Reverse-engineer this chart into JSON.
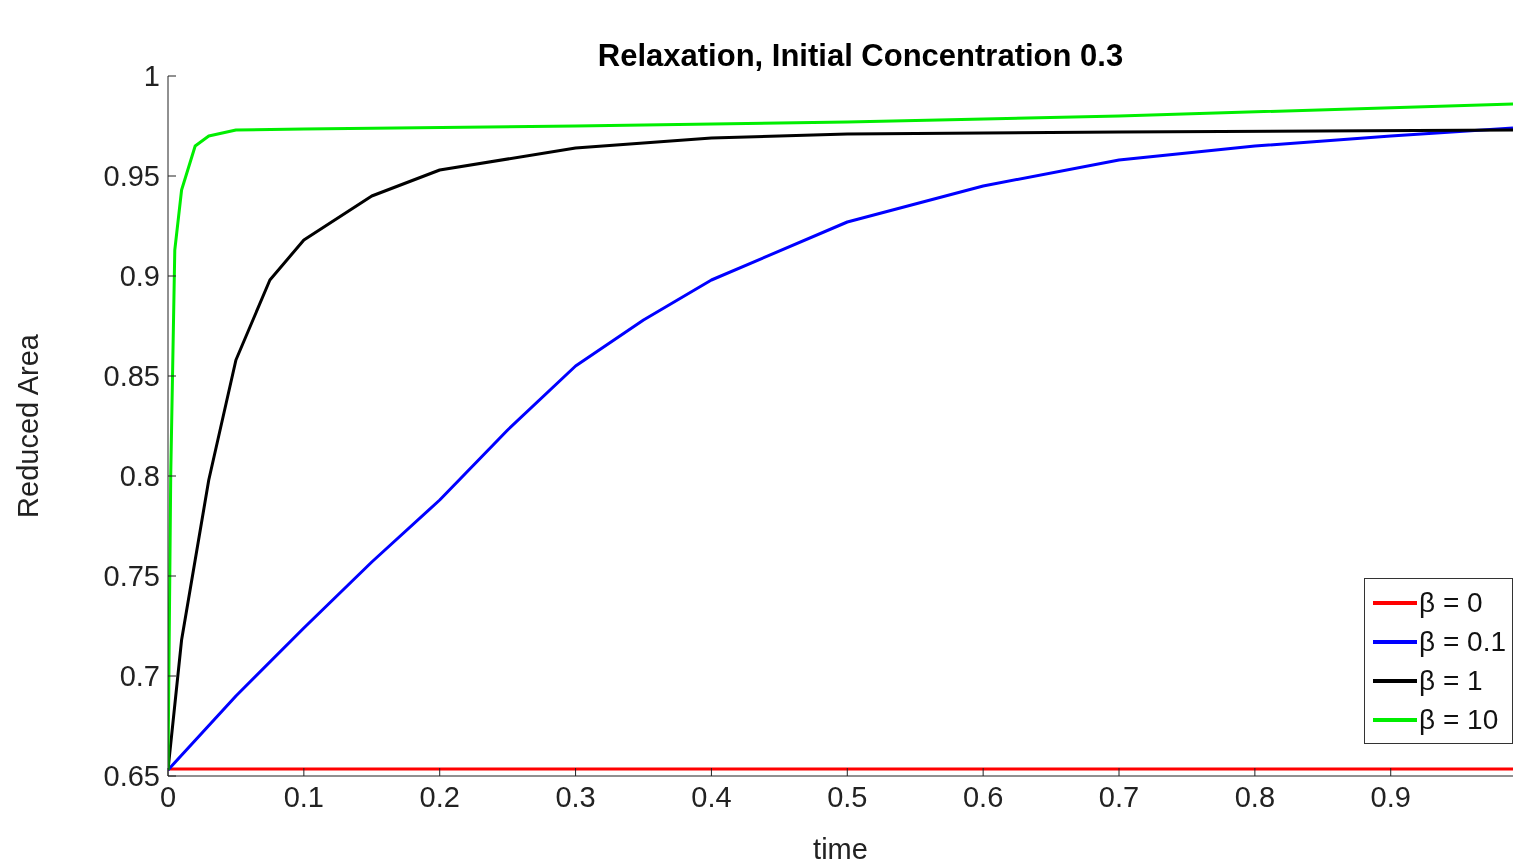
{
  "chart_data": {
    "type": "line",
    "title": "Relaxation, Initial Concentration 0.3",
    "xlabel": "time",
    "ylabel": "Reduced Area",
    "xlim": [
      0,
      0.99
    ],
    "xticks": [
      0,
      0.1,
      0.2,
      0.3,
      0.4,
      0.5,
      0.6,
      0.7,
      0.8,
      0.9
    ],
    "ylim": [
      0.65,
      1
    ],
    "yticks": [
      0.65,
      0.7,
      0.75,
      0.8,
      0.85,
      0.9,
      0.95,
      1
    ],
    "grid": false,
    "legend": "bottom right",
    "line_style": "solid",
    "marker": "none",
    "series": [
      {
        "name": "β = 0",
        "color": "#ff0000",
        "x": [
          0,
          0.2,
          0.4,
          0.6,
          0.8,
          0.99
        ],
        "values": [
          0.6535,
          0.6535,
          0.6535,
          0.6535,
          0.6535,
          0.6535
        ]
      },
      {
        "name": "β = 0.1",
        "color": "#0000ff",
        "x": [
          0,
          0.05,
          0.1,
          0.15,
          0.2,
          0.25,
          0.3,
          0.35,
          0.4,
          0.5,
          0.6,
          0.7,
          0.8,
          0.9,
          0.99
        ],
        "values": [
          0.653,
          0.69,
          0.724,
          0.757,
          0.788,
          0.823,
          0.855,
          0.878,
          0.898,
          0.927,
          0.945,
          0.958,
          0.965,
          0.97,
          0.974
        ]
      },
      {
        "name": "β = 1",
        "color": "#000000",
        "x": [
          0,
          0.01,
          0.02,
          0.03,
          0.05,
          0.075,
          0.1,
          0.15,
          0.2,
          0.3,
          0.4,
          0.5,
          0.7,
          0.99
        ],
        "values": [
          0.653,
          0.718,
          0.758,
          0.798,
          0.858,
          0.898,
          0.918,
          0.94,
          0.953,
          0.964,
          0.969,
          0.971,
          0.972,
          0.973
        ]
      },
      {
        "name": "β = 10",
        "color": "#00ee00",
        "x": [
          0,
          0.002,
          0.005,
          0.01,
          0.02,
          0.03,
          0.05,
          0.1,
          0.3,
          0.5,
          0.7,
          0.99
        ],
        "values": [
          0.653,
          0.8,
          0.913,
          0.943,
          0.965,
          0.97,
          0.973,
          0.9735,
          0.975,
          0.977,
          0.98,
          0.986
        ]
      }
    ]
  }
}
